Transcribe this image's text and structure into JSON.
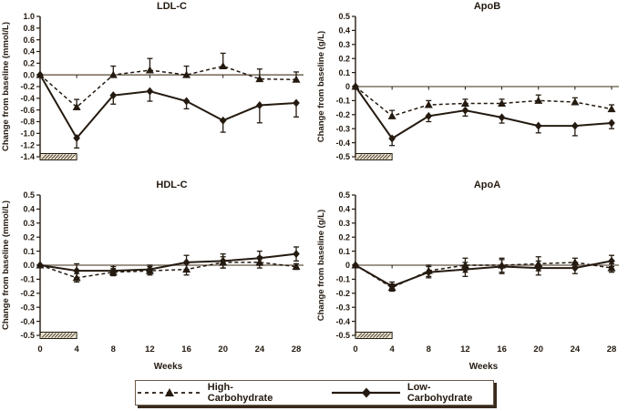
{
  "legend": {
    "items": [
      {
        "label": "High-Carbohydrate",
        "marker": "triangle-marker",
        "line": "dashed"
      },
      {
        "label": "Low-Carbohydrate",
        "marker": "diamond-marker",
        "line": "solid"
      }
    ]
  },
  "colors": {
    "ink": "#241a10",
    "zero_line": "#7d7265",
    "hatch_fill": "#ece3cf",
    "background": "#ffffff"
  },
  "chart_data": [
    {
      "type": "line",
      "title": "LDL-C",
      "ylabel": "Change from baseline (mmol/L)",
      "xlabel": "Weeks",
      "show_x_axis_labels": false,
      "x": [
        0,
        4,
        8,
        12,
        16,
        20,
        24,
        28
      ],
      "ylim": [
        -1.4,
        1.0
      ],
      "ytick_step": 0.2,
      "zero_tick_label": "0.0",
      "grid": false,
      "legend_position": "bottom-shared",
      "intervention_bar_weeks": [
        0,
        4
      ],
      "series": [
        {
          "name": "High-Carbohydrate",
          "marker": "triangle",
          "line": "dashed",
          "error_side": "up",
          "values": [
            0,
            -0.55,
            0,
            0.08,
            0,
            0.15,
            -0.07,
            -0.08
          ],
          "errors": [
            0,
            0.13,
            0.15,
            0.2,
            0.15,
            0.22,
            0.17,
            0.13
          ]
        },
        {
          "name": "Low-Carbohydrate",
          "marker": "diamond",
          "line": "solid",
          "error_side": "down",
          "values": [
            0,
            -1.08,
            -0.35,
            -0.28,
            -0.45,
            -0.78,
            -0.52,
            -0.48
          ],
          "errors": [
            0,
            0.17,
            0.15,
            0.17,
            0.13,
            0.2,
            0.3,
            0.24
          ]
        }
      ]
    },
    {
      "type": "line",
      "title": "ApoB",
      "ylabel": "Change from baseline (g/L)",
      "xlabel": "Weeks",
      "show_x_axis_labels": false,
      "x": [
        0,
        4,
        8,
        12,
        16,
        20,
        24,
        28
      ],
      "ylim": [
        -0.5,
        0.5
      ],
      "ytick_step": 0.1,
      "zero_tick_label": "0",
      "grid": false,
      "legend_position": "bottom-shared",
      "intervention_bar_weeks": [
        0,
        4
      ],
      "series": [
        {
          "name": "High-Carbohydrate",
          "marker": "triangle",
          "line": "dashed",
          "error_side": "up",
          "values": [
            0,
            -0.21,
            -0.13,
            -0.12,
            -0.12,
            -0.1,
            -0.11,
            -0.16
          ],
          "errors": [
            0,
            0.04,
            0.03,
            0.03,
            0.03,
            0.04,
            0.03,
            0.03
          ]
        },
        {
          "name": "Low-Carbohydrate",
          "marker": "diamond",
          "line": "solid",
          "error_side": "down",
          "values": [
            0,
            -0.37,
            -0.21,
            -0.17,
            -0.22,
            -0.28,
            -0.28,
            -0.26
          ],
          "errors": [
            0,
            0.05,
            0.04,
            0.04,
            0.04,
            0.05,
            0.07,
            0.04
          ]
        }
      ]
    },
    {
      "type": "line",
      "title": "HDL-C",
      "ylabel": "Change from baseline (mmol/L)",
      "xlabel": "Weeks",
      "show_x_axis_labels": true,
      "x": [
        0,
        4,
        8,
        12,
        16,
        20,
        24,
        28
      ],
      "ylim": [
        -0.5,
        0.5
      ],
      "ytick_step": 0.1,
      "zero_tick_label": "0.0",
      "grid": false,
      "legend_position": "bottom-shared",
      "intervention_bar_weeks": [
        0,
        4
      ],
      "series": [
        {
          "name": "High-Carbohydrate",
          "marker": "triangle",
          "line": "dashed",
          "error_side": "both",
          "values": [
            0,
            -0.09,
            -0.05,
            -0.04,
            -0.03,
            0.02,
            0.02,
            -0.01
          ],
          "errors": [
            0,
            0.03,
            0.025,
            0.03,
            0.04,
            0.04,
            0.04,
            0.02
          ]
        },
        {
          "name": "Low-Carbohydrate",
          "marker": "diamond",
          "line": "solid",
          "error_side": "both",
          "values": [
            0,
            -0.04,
            -0.04,
            -0.03,
            0.02,
            0.03,
            0.05,
            0.08
          ],
          "errors": [
            0,
            0.05,
            0.03,
            0.03,
            0.05,
            0.05,
            0.05,
            0.05
          ]
        }
      ]
    },
    {
      "type": "line",
      "title": "ApoA",
      "ylabel": "Change from baseline (g/L)",
      "xlabel": "Weeks",
      "show_x_axis_labels": true,
      "x": [
        0,
        4,
        8,
        12,
        16,
        20,
        24,
        28
      ],
      "ylim": [
        -0.5,
        0.5
      ],
      "ytick_step": 0.1,
      "zero_tick_label": "0",
      "grid": false,
      "legend_position": "bottom-shared",
      "intervention_bar_weeks": [
        0,
        4
      ],
      "series": [
        {
          "name": "High-Carbohydrate",
          "marker": "triangle",
          "line": "dashed",
          "error_side": "both",
          "values": [
            0,
            -0.16,
            -0.04,
            0,
            0,
            0.01,
            0.02,
            -0.02
          ],
          "errors": [
            0,
            0.025,
            0.04,
            0.05,
            0.05,
            0.05,
            0.03,
            0.03
          ]
        },
        {
          "name": "Low-Carbohydrate",
          "marker": "diamond",
          "line": "solid",
          "error_side": "both",
          "values": [
            0,
            -0.15,
            -0.05,
            -0.03,
            -0.01,
            -0.02,
            -0.02,
            0.03
          ],
          "errors": [
            0,
            0.03,
            0.04,
            0.05,
            0.05,
            0.05,
            0.04,
            0.04
          ]
        }
      ]
    }
  ]
}
